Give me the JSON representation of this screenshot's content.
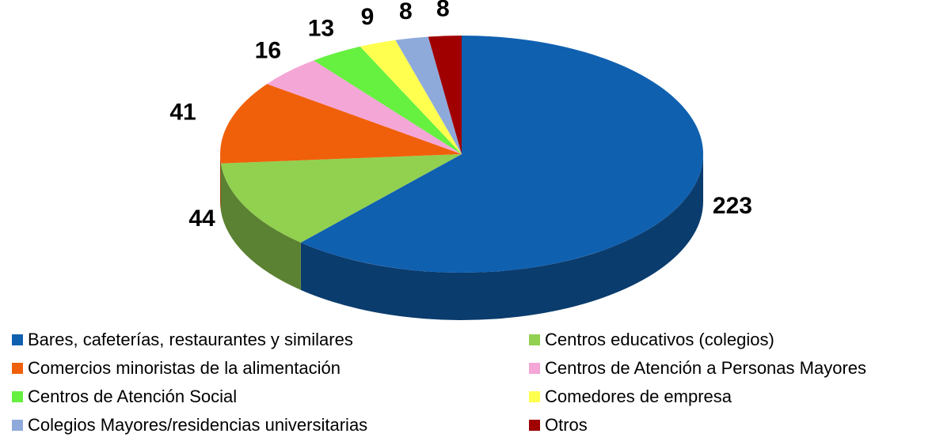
{
  "chart_data": {
    "type": "pie",
    "categories": [
      "Bares, cafeterías, restaurantes y similares",
      "Centros educativos (colegios)",
      "Comercios minoristas de la alimentación",
      "Centros de Atención a Personas Mayores",
      "Centros de Atención Social",
      "Comedores de empresa",
      "Colegios Mayores/residencias universitarias",
      "Otros"
    ],
    "values": [
      223,
      44,
      41,
      16,
      13,
      9,
      8,
      8
    ],
    "colors": [
      "#1060b0",
      "#92d050",
      "#f0600a",
      "#f4a6d7",
      "#66f040",
      "#ffff50",
      "#8eaadb",
      "#a00000"
    ],
    "legend": "bottom"
  }
}
